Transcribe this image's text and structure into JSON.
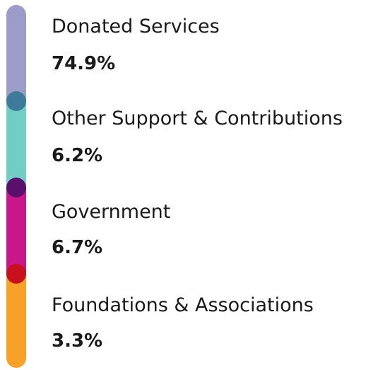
{
  "items": [
    {
      "label": "Donated Services",
      "value": "74.9%",
      "color": "#9b9cc9"
    },
    {
      "label": "Other Support & Contributions",
      "value": "6.2%",
      "color": "#72cdc5"
    },
    {
      "label": "Government",
      "value": "6.7%",
      "color": "#c8168b"
    },
    {
      "label": "Foundations & Associations",
      "value": "3.3%",
      "color": "#f7a12b"
    }
  ]
}
